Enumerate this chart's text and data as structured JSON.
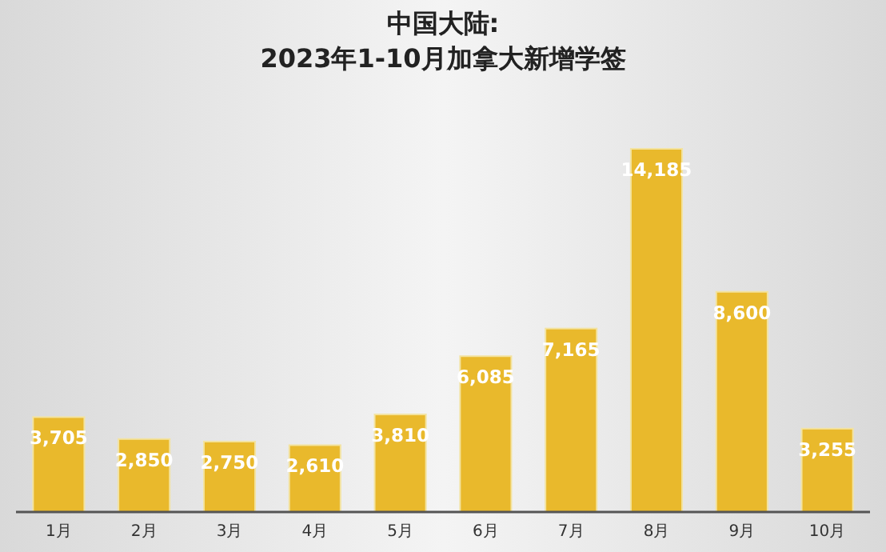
{
  "chart_data": {
    "type": "bar",
    "title": "中国大陆:",
    "subtitle": "2023年1-10月加拿大新增学签",
    "categories": [
      "1月",
      "2月",
      "3月",
      "4月",
      "5月",
      "6月",
      "7月",
      "8月",
      "9月",
      "10月"
    ],
    "values": [
      3705,
      2850,
      2750,
      2610,
      3810,
      6085,
      7165,
      14185,
      8600,
      3255
    ],
    "color": "#e9b92c",
    "value_labels": [
      "3,705",
      "2,850",
      "2,750",
      "2,610",
      "3,810",
      "6,085",
      "7,165",
      "14,185",
      "8,600",
      "3,255"
    ],
    "tick_labels": "x"
  }
}
